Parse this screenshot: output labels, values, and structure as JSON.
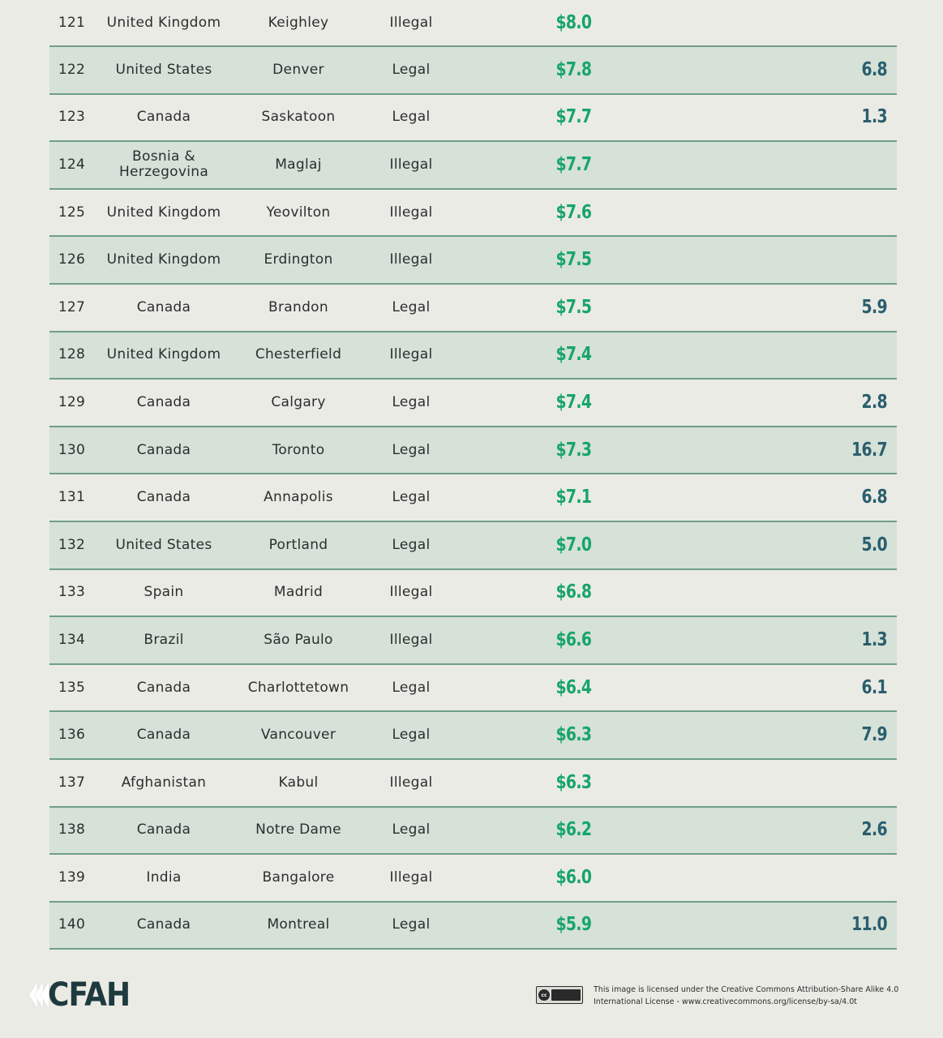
{
  "rows": [
    {
      "rank": "121",
      "country": "United Kingdom",
      "city": "Keighley",
      "status": "Illegal",
      "price": "$8.0",
      "extra": ""
    },
    {
      "rank": "122",
      "country": "United States",
      "city": "Denver",
      "status": "Legal",
      "price": "$7.8",
      "extra": "6.8"
    },
    {
      "rank": "123",
      "country": "Canada",
      "city": "Saskatoon",
      "status": "Legal",
      "price": "$7.7",
      "extra": "1.3"
    },
    {
      "rank": "124",
      "country": "Bosnia & Herzegovina",
      "city": "Maglaj",
      "status": "Illegal",
      "price": "$7.7",
      "extra": ""
    },
    {
      "rank": "125",
      "country": "United Kingdom",
      "city": "Yeovilton",
      "status": "Illegal",
      "price": "$7.6",
      "extra": ""
    },
    {
      "rank": "126",
      "country": "United Kingdom",
      "city": "Erdington",
      "status": "Illegal",
      "price": "$7.5",
      "extra": ""
    },
    {
      "rank": "127",
      "country": "Canada",
      "city": "Brandon",
      "status": "Legal",
      "price": "$7.5",
      "extra": "5.9"
    },
    {
      "rank": "128",
      "country": "United Kingdom",
      "city": "Chesterfield",
      "status": "Illegal",
      "price": "$7.4",
      "extra": ""
    },
    {
      "rank": "129",
      "country": "Canada",
      "city": "Calgary",
      "status": "Legal",
      "price": "$7.4",
      "extra": "2.8"
    },
    {
      "rank": "130",
      "country": "Canada",
      "city": "Toronto",
      "status": "Legal",
      "price": "$7.3",
      "extra": "16.7"
    },
    {
      "rank": "131",
      "country": "Canada",
      "city": "Annapolis",
      "status": "Legal",
      "price": "$7.1",
      "extra": "6.8"
    },
    {
      "rank": "132",
      "country": "United States",
      "city": "Portland",
      "status": "Legal",
      "price": "$7.0",
      "extra": "5.0"
    },
    {
      "rank": "133",
      "country": "Spain",
      "city": "Madrid",
      "status": "Illegal",
      "price": "$6.8",
      "extra": ""
    },
    {
      "rank": "134",
      "country": "Brazil",
      "city": "São Paulo",
      "status": "Illegal",
      "price": "$6.6",
      "extra": "1.3"
    },
    {
      "rank": "135",
      "country": "Canada",
      "city": "Charlottetown",
      "status": "Legal",
      "price": "$6.4",
      "extra": "6.1"
    },
    {
      "rank": "136",
      "country": "Canada",
      "city": "Vancouver",
      "status": "Legal",
      "price": "$6.3",
      "extra": "7.9"
    },
    {
      "rank": "137",
      "country": "Afghanistan",
      "city": "Kabul",
      "status": "Illegal",
      "price": "$6.3",
      "extra": ""
    },
    {
      "rank": "138",
      "country": "Canada",
      "city": "Notre Dame",
      "status": "Legal",
      "price": "$6.2",
      "extra": "2.6"
    },
    {
      "rank": "139",
      "country": "India",
      "city": "Bangalore",
      "status": "Illegal",
      "price": "$6.0",
      "extra": ""
    },
    {
      "rank": "140",
      "country": "Canada",
      "city": "Montreal",
      "status": "Legal",
      "price": "$5.9",
      "extra": "11.0"
    }
  ],
  "footer": {
    "logo_text": "CFAH",
    "license_line1": "This image is licensed under the Creative Commons Attribution-Share Alike 4.0",
    "license_line2": "International License - www.creativecommons.org/license/by-sa/4.0t",
    "cc_icon": "cc-by-sa-badge-icon"
  },
  "colors": {
    "background": "#ebebe5",
    "row_alt": "#d6e1d8",
    "divider": "#6e9f86",
    "price": "#17a56a",
    "extra": "#2a5e6e",
    "logo": "#1e3a3e"
  }
}
